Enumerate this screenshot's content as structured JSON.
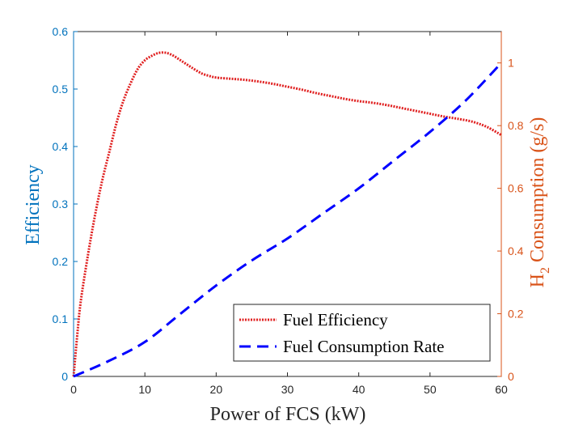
{
  "chart_data": {
    "type": "line",
    "xlabel": "Power of FCS (kW)",
    "ylabel_left": "Efficiency",
    "ylabel_right": {
      "main": "H",
      "sub": "2",
      "rest": " Consumption (g/s)"
    },
    "xlim": [
      0,
      60
    ],
    "ylim_left": [
      0,
      0.6
    ],
    "ylim_right": [
      0,
      1.1
    ],
    "x_ticks": [
      "0",
      "10",
      "20",
      "30",
      "40",
      "50",
      "60"
    ],
    "y_left_ticks": [
      "0",
      "0.1",
      "0.2",
      "0.3",
      "0.4",
      "0.5",
      "0.6"
    ],
    "y_right_ticks": [
      "0",
      "0.2",
      "0.4",
      "0.6",
      "0.8",
      "1"
    ],
    "grid": false,
    "legend_position": "bottom-right",
    "colors": {
      "left_axis": "#0072BD",
      "right_axis": "#D95319",
      "efficiency": "#E02020",
      "consumption": "#0000FF",
      "frame": "#262626"
    },
    "series": [
      {
        "name": "Fuel Efficiency",
        "axis": "left",
        "style": "dotted",
        "x": [
          0,
          0.5,
          1,
          2,
          3,
          4,
          5,
          6,
          7,
          8,
          9,
          10,
          11,
          12,
          13,
          14,
          15,
          16,
          17,
          18,
          19,
          20,
          22,
          24,
          26,
          28,
          30,
          32,
          34,
          36,
          38,
          40,
          42,
          44,
          46,
          48,
          50,
          52,
          54,
          56,
          58,
          60
        ],
        "y": [
          0,
          0.07,
          0.13,
          0.21,
          0.28,
          0.34,
          0.39,
          0.44,
          0.48,
          0.51,
          0.535,
          0.55,
          0.558,
          0.563,
          0.563,
          0.558,
          0.55,
          0.542,
          0.534,
          0.527,
          0.523,
          0.52,
          0.518,
          0.516,
          0.513,
          0.509,
          0.504,
          0.499,
          0.493,
          0.488,
          0.483,
          0.479,
          0.476,
          0.472,
          0.467,
          0.462,
          0.457,
          0.452,
          0.448,
          0.443,
          0.434,
          0.42
        ]
      },
      {
        "name": "Fuel Consumption Rate",
        "axis": "right",
        "style": "dashed",
        "x": [
          0,
          5,
          10,
          15,
          20,
          25,
          30,
          35,
          40,
          45,
          50,
          55,
          60
        ],
        "y": [
          0,
          0.05,
          0.11,
          0.2,
          0.29,
          0.37,
          0.44,
          0.52,
          0.6,
          0.69,
          0.78,
          0.88,
          1.0
        ]
      }
    ]
  }
}
